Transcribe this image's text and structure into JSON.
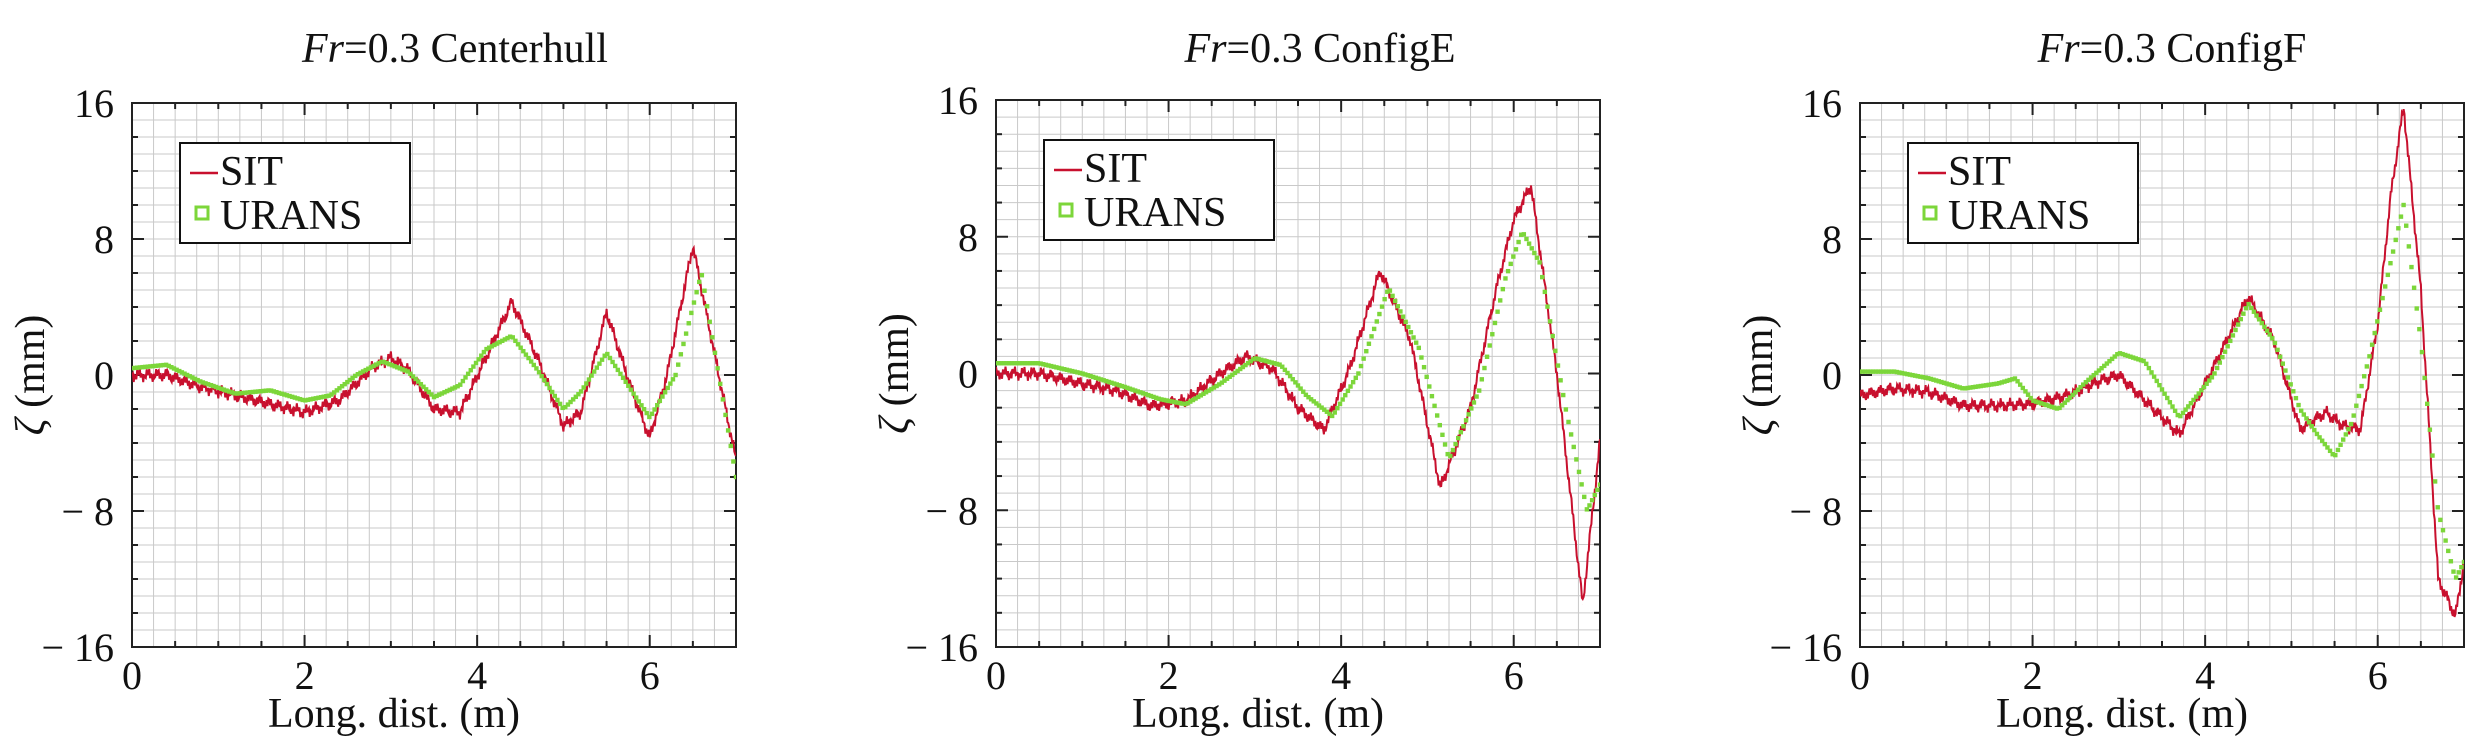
{
  "figure": {
    "panels": [
      {
        "title_prefix": "Fr",
        "title_suffix": "=0.3 Centerhull"
      },
      {
        "title_prefix": "Fr",
        "title_suffix": "=0.3 ConfigE"
      },
      {
        "title_prefix": "Fr",
        "title_suffix": "=0.3 ConfigF"
      }
    ]
  },
  "colors": {
    "SIT": "#c8102e",
    "URANS": "#7cd63a",
    "grid": "#c9c9c9"
  },
  "chart_data": [
    {
      "type": "line",
      "title": "Fr=0.3 Centerhull",
      "xlabel": "Long. dist. (m)",
      "ylabel": "ζ (mm)",
      "xlim": [
        0,
        7
      ],
      "ylim": [
        -16,
        16
      ],
      "xticks": [
        "0",
        "2",
        "4",
        "6"
      ],
      "yticks": [
        "16",
        "8",
        "0",
        "− 8",
        "− 16"
      ],
      "grid": true,
      "legend": "top-left",
      "series": [
        {
          "name": "SIT",
          "style": "line",
          "x": [
            0,
            0.4,
            0.8,
            1.2,
            1.6,
            2.0,
            2.4,
            2.8,
            3.0,
            3.2,
            3.5,
            3.8,
            4.1,
            4.4,
            4.7,
            5.0,
            5.2,
            5.5,
            5.8,
            6.0,
            6.2,
            6.5,
            6.8,
            7.0
          ],
          "y": [
            0.0,
            0.0,
            -0.7,
            -1.2,
            -1.7,
            -2.2,
            -1.5,
            0.5,
            1.0,
            0.3,
            -2.0,
            -2.2,
            1.0,
            4.3,
            1.0,
            -3.0,
            -2.2,
            3.7,
            -1.0,
            -3.7,
            0.0,
            7.6,
            0.0,
            -5.0
          ]
        },
        {
          "name": "URANS",
          "style": "markers",
          "x": [
            0,
            0.4,
            0.8,
            1.2,
            1.6,
            2.0,
            2.3,
            2.6,
            2.9,
            3.2,
            3.5,
            3.8,
            4.1,
            4.4,
            4.7,
            5.0,
            5.2,
            5.5,
            5.8,
            6.0,
            6.3,
            6.6,
            6.9,
            7.0
          ],
          "y": [
            0.4,
            0.6,
            -0.4,
            -1.1,
            -0.9,
            -1.5,
            -1.2,
            0.0,
            0.8,
            0.2,
            -1.3,
            -0.6,
            1.5,
            2.3,
            0.3,
            -2.0,
            -1.0,
            1.3,
            -1.0,
            -2.5,
            0.0,
            6.0,
            -3.0,
            -6.0
          ]
        }
      ]
    },
    {
      "type": "line",
      "title": "Fr=0.3 ConfigE",
      "xlabel": "Long. dist. (m)",
      "ylabel": "ζ (mm)",
      "xlim": [
        0,
        7
      ],
      "ylim": [
        -16,
        16
      ],
      "xticks": [
        "0",
        "2",
        "4",
        "6"
      ],
      "yticks": [
        "16",
        "8",
        "0",
        "− 8",
        "− 16"
      ],
      "grid": true,
      "legend": "top-left",
      "series": [
        {
          "name": "SIT",
          "style": "line",
          "x": [
            0,
            0.5,
            1.0,
            1.4,
            1.8,
            2.2,
            2.6,
            2.9,
            3.2,
            3.5,
            3.8,
            4.1,
            4.45,
            4.8,
            5.15,
            5.5,
            5.8,
            6.0,
            6.2,
            6.5,
            6.8,
            7.0
          ],
          "y": [
            0.0,
            0.0,
            -0.6,
            -1.0,
            -1.9,
            -1.6,
            0.0,
            1.0,
            0.3,
            -2.0,
            -3.3,
            0.3,
            6.0,
            2.0,
            -6.7,
            -2.0,
            5.0,
            9.0,
            11.0,
            0.0,
            -13.5,
            -4.0
          ]
        },
        {
          "name": "URANS",
          "style": "markers",
          "x": [
            0,
            0.5,
            1.0,
            1.5,
            1.9,
            2.2,
            2.6,
            3.0,
            3.3,
            3.6,
            3.9,
            4.2,
            4.55,
            4.9,
            5.25,
            5.6,
            5.9,
            6.1,
            6.3,
            6.6,
            6.85,
            7.0
          ],
          "y": [
            0.6,
            0.6,
            0.0,
            -0.8,
            -1.5,
            -1.8,
            -0.6,
            0.9,
            0.5,
            -1.3,
            -2.5,
            0.0,
            5.0,
            1.5,
            -5.0,
            -1.0,
            5.5,
            8.3,
            6.5,
            -2.0,
            -8.0,
            -6.5
          ]
        }
      ]
    },
    {
      "type": "line",
      "title": "Fr=0.3 ConfigF",
      "xlabel": "Long. dist. (m)",
      "ylabel": "ζ (mm)",
      "xlim": [
        0,
        7
      ],
      "ylim": [
        -16,
        16
      ],
      "xticks": [
        "0",
        "2",
        "4",
        "6"
      ],
      "yticks": [
        "16",
        "8",
        "0",
        "− 8",
        "− 16"
      ],
      "grid": true,
      "legend": "top-left",
      "series": [
        {
          "name": "SIT",
          "style": "line",
          "x": [
            0,
            0.4,
            0.8,
            1.2,
            1.6,
            2.0,
            2.4,
            2.8,
            3.0,
            3.3,
            3.7,
            4.1,
            4.5,
            4.8,
            5.1,
            5.4,
            5.6,
            5.8,
            6.0,
            6.15,
            6.3,
            6.5,
            6.7,
            6.9,
            7.0
          ],
          "y": [
            -1.2,
            -0.8,
            -1.0,
            -1.8,
            -1.8,
            -1.7,
            -1.2,
            -0.3,
            0.0,
            -1.5,
            -3.5,
            0.5,
            4.6,
            2.0,
            -3.2,
            -2.2,
            -3.0,
            -3.2,
            3.0,
            10.5,
            15.8,
            5.0,
            -12.0,
            -14.2,
            -11.0
          ]
        },
        {
          "name": "URANS",
          "style": "markers",
          "x": [
            0,
            0.4,
            0.8,
            1.2,
            1.6,
            1.8,
            2.0,
            2.3,
            2.6,
            3.0,
            3.3,
            3.7,
            4.1,
            4.5,
            4.8,
            5.1,
            5.3,
            5.5,
            5.7,
            5.9,
            6.1,
            6.3,
            6.5,
            6.7,
            6.9,
            7.0
          ],
          "y": [
            0.2,
            0.2,
            -0.2,
            -0.8,
            -0.5,
            -0.2,
            -1.5,
            -2.0,
            -0.5,
            1.3,
            0.8,
            -2.5,
            0.0,
            4.2,
            2.0,
            -2.0,
            -3.5,
            -4.8,
            -2.8,
            1.0,
            5.5,
            10.0,
            2.0,
            -8.0,
            -12.0,
            -11.0
          ]
        }
      ]
    }
  ]
}
